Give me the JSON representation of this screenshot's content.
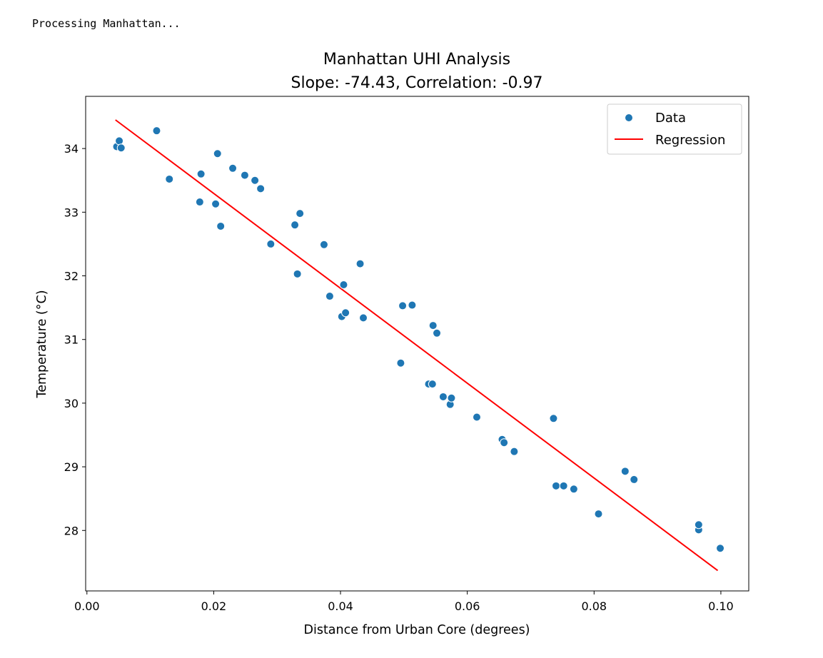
{
  "console": {
    "text": "Processing Manhattan..."
  },
  "chart_data": {
    "type": "scatter",
    "title": "Manhattan UHI Analysis",
    "subtitle": "Slope: -74.43, Correlation: -0.97",
    "xlabel": "Distance from Urban Core (degrees)",
    "ylabel": "Temperature (°C)",
    "xlim": [
      -0.0002,
      0.1044
    ],
    "ylim": [
      27.05,
      34.82
    ],
    "xticks": [
      0.0,
      0.02,
      0.04,
      0.06,
      0.08,
      0.1
    ],
    "xtick_labels": [
      "0.00",
      "0.02",
      "0.04",
      "0.06",
      "0.08",
      "0.10"
    ],
    "yticks": [
      28,
      29,
      30,
      31,
      32,
      33,
      34
    ],
    "ytick_labels": [
      "28",
      "29",
      "30",
      "31",
      "32",
      "33",
      "34"
    ],
    "grid": false,
    "legend": {
      "position": "top-right",
      "entries": [
        "Data",
        "Regression"
      ]
    },
    "colors": {
      "points": "#1f77b4",
      "line": "#ff0000"
    },
    "series": [
      {
        "name": "Data",
        "kind": "scatter",
        "points": [
          [
            0.0047,
            34.03
          ],
          [
            0.0051,
            34.12
          ],
          [
            0.0054,
            34.01
          ],
          [
            0.011,
            34.28
          ],
          [
            0.013,
            33.52
          ],
          [
            0.0178,
            33.16
          ],
          [
            0.018,
            33.6
          ],
          [
            0.0203,
            33.13
          ],
          [
            0.0206,
            33.92
          ],
          [
            0.0211,
            32.78
          ],
          [
            0.023,
            33.69
          ],
          [
            0.0249,
            33.58
          ],
          [
            0.0265,
            33.5
          ],
          [
            0.0274,
            33.37
          ],
          [
            0.029,
            32.5
          ],
          [
            0.0328,
            32.8
          ],
          [
            0.0332,
            32.03
          ],
          [
            0.0336,
            32.98
          ],
          [
            0.0374,
            32.49
          ],
          [
            0.0383,
            31.68
          ],
          [
            0.0402,
            31.36
          ],
          [
            0.0405,
            31.86
          ],
          [
            0.0408,
            31.42
          ],
          [
            0.0431,
            32.19
          ],
          [
            0.0436,
            31.34
          ],
          [
            0.0495,
            30.63
          ],
          [
            0.0498,
            31.53
          ],
          [
            0.0513,
            31.54
          ],
          [
            0.0539,
            30.3
          ],
          [
            0.0545,
            30.3
          ],
          [
            0.0546,
            31.22
          ],
          [
            0.0552,
            31.1
          ],
          [
            0.0562,
            30.1
          ],
          [
            0.0573,
            29.98
          ],
          [
            0.0575,
            30.08
          ],
          [
            0.0615,
            29.78
          ],
          [
            0.0655,
            29.43
          ],
          [
            0.0658,
            29.38
          ],
          [
            0.0674,
            29.24
          ],
          [
            0.0736,
            29.76
          ],
          [
            0.074,
            28.7
          ],
          [
            0.0752,
            28.7
          ],
          [
            0.0768,
            28.65
          ],
          [
            0.0807,
            28.26
          ],
          [
            0.0849,
            28.93
          ],
          [
            0.0863,
            28.8
          ],
          [
            0.0965,
            28.01
          ],
          [
            0.0965,
            28.09
          ],
          [
            0.0999,
            27.72
          ]
        ]
      },
      {
        "name": "Regression",
        "kind": "line",
        "points": [
          [
            0.0045,
            34.45
          ],
          [
            0.0995,
            27.37
          ]
        ]
      }
    ]
  }
}
